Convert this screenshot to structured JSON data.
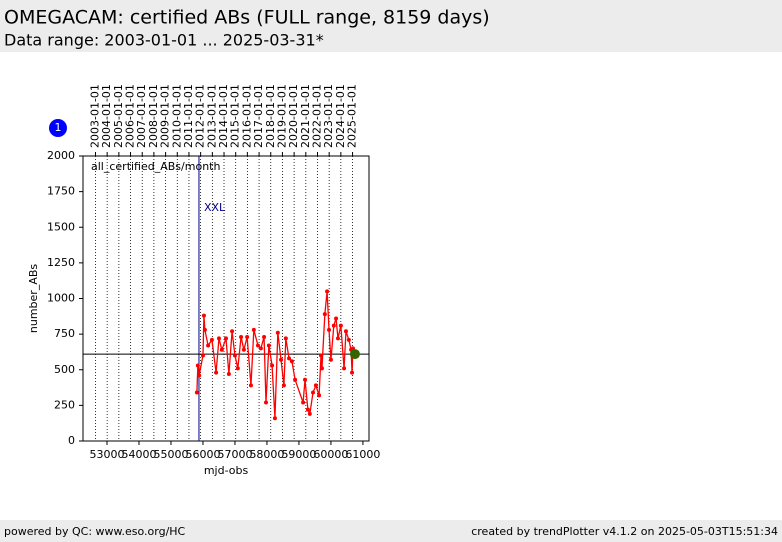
{
  "header": {
    "title": "OMEGACAM: certified ABs (FULL range, 8159 days)",
    "subtitle": "Data range: 2003-01-01 ... 2025-03-31*"
  },
  "footer": {
    "left": "powered by QC: www.eso.org/HC",
    "right": "created by trendPlotter v4.1.2 on 2025-05-03T15:51:34"
  },
  "badge": "1",
  "chart_data": {
    "type": "line",
    "annotation": "all_certified_ABs/month",
    "vline_label": "XXL",
    "vline": 55875,
    "vline_color": "#00008b",
    "hline": 610,
    "xlabel": "mjd-obs",
    "ylabel": "number_ABs",
    "xlim": [
      52250,
      61190
    ],
    "ylim": [
      0,
      2000
    ],
    "xticks": [
      53000,
      54000,
      55000,
      56000,
      57000,
      58000,
      59000,
      60000,
      61000
    ],
    "yticks": [
      0,
      250,
      500,
      750,
      1000,
      1250,
      1500,
      1750,
      2000
    ],
    "x2ticks": [
      {
        "value": 52640,
        "label": "2003-01-01"
      },
      {
        "value": 53005,
        "label": "2004-01-01"
      },
      {
        "value": 53371,
        "label": "2005-01-01"
      },
      {
        "value": 53736,
        "label": "2006-01-01"
      },
      {
        "value": 54101,
        "label": "2007-01-01"
      },
      {
        "value": 54466,
        "label": "2008-01-01"
      },
      {
        "value": 54832,
        "label": "2009-01-01"
      },
      {
        "value": 55197,
        "label": "2010-01-01"
      },
      {
        "value": 55562,
        "label": "2011-01-01"
      },
      {
        "value": 55927,
        "label": "2012-01-01"
      },
      {
        "value": 56293,
        "label": "2013-01-01"
      },
      {
        "value": 56658,
        "label": "2014-01-01"
      },
      {
        "value": 57023,
        "label": "2015-01-01"
      },
      {
        "value": 57388,
        "label": "2016-01-01"
      },
      {
        "value": 57754,
        "label": "2017-01-01"
      },
      {
        "value": 58119,
        "label": "2018-01-01"
      },
      {
        "value": 58484,
        "label": "2019-01-01"
      },
      {
        "value": 58849,
        "label": "2020-01-01"
      },
      {
        "value": 59215,
        "label": "2021-01-01"
      },
      {
        "value": 59580,
        "label": "2022-01-01"
      },
      {
        "value": 59945,
        "label": "2023-01-01"
      },
      {
        "value": 60310,
        "label": "2024-01-01"
      },
      {
        "value": 60676,
        "label": "2025-01-01"
      }
    ],
    "series": [
      {
        "color": "#ff0000",
        "x": [
          55810,
          55840,
          55880,
          56000,
          56030,
          56060,
          56160,
          56280,
          56410,
          56500,
          56590,
          56720,
          56810,
          56910,
          57000,
          57090,
          57190,
          57280,
          57380,
          57500,
          57590,
          57720,
          57810,
          57910,
          57970,
          58060,
          58160,
          58250,
          58340,
          58440,
          58530,
          58590,
          58690,
          58780,
          58880,
          59130,
          59190,
          59280,
          59340,
          59440,
          59530,
          59630,
          59690,
          59720,
          59810,
          59880,
          59940,
          60000,
          60090,
          60160,
          60220,
          60310,
          60410,
          60470,
          60560,
          60630,
          60660,
          60690
        ],
        "values": [
          340,
          530,
          460,
          600,
          880,
          780,
          670,
          710,
          480,
          720,
          640,
          720,
          470,
          770,
          600,
          510,
          730,
          640,
          730,
          390,
          780,
          670,
          650,
          730,
          270,
          670,
          530,
          160,
          760,
          570,
          390,
          720,
          580,
          560,
          430,
          270,
          430,
          220,
          190,
          340,
          390,
          320,
          600,
          510,
          890,
          1050,
          780,
          570,
          810,
          860,
          720,
          810,
          510,
          770,
          710,
          640,
          480,
          650
        ]
      }
    ],
    "highlight": {
      "x": 60750,
      "value": 610,
      "color": "#336600"
    }
  }
}
